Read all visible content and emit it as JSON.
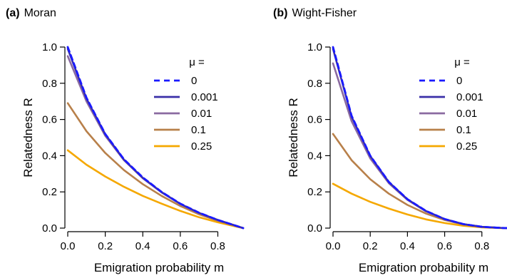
{
  "chart_data": [
    {
      "type": "line",
      "panel_label": "(a)",
      "title": "Moran",
      "xlabel": "Emigration probability m",
      "ylabel": "Relatedness R",
      "xlim": [
        0,
        0.935
      ],
      "ylim": [
        0,
        1.0
      ],
      "xticks": [
        "0.0",
        "0.2",
        "0.4",
        "0.6",
        "0.8"
      ],
      "yticks": [
        "0.0",
        "0.2",
        "0.4",
        "0.6",
        "0.8",
        "1.0"
      ],
      "legend_title": "μ =",
      "legend_position": "top-right",
      "grid": false,
      "series": [
        {
          "name": "0",
          "color": "#1a1aff",
          "dashed": true,
          "x": [
            0,
            0.1,
            0.2,
            0.3,
            0.4,
            0.5,
            0.6,
            0.7,
            0.8,
            0.9,
            0.935
          ],
          "y": [
            1.0,
            0.72,
            0.52,
            0.38,
            0.28,
            0.2,
            0.135,
            0.085,
            0.045,
            0.012,
            0.0
          ]
        },
        {
          "name": "0.001",
          "color": "#3a2fa8",
          "dashed": false,
          "x": [
            0,
            0.1,
            0.2,
            0.3,
            0.4,
            0.5,
            0.6,
            0.7,
            0.8,
            0.9,
            0.935
          ],
          "y": [
            0.99,
            0.715,
            0.518,
            0.378,
            0.278,
            0.199,
            0.134,
            0.084,
            0.045,
            0.012,
            0.0
          ]
        },
        {
          "name": "0.01",
          "color": "#8a6aa0",
          "dashed": false,
          "x": [
            0,
            0.1,
            0.2,
            0.3,
            0.4,
            0.5,
            0.6,
            0.7,
            0.8,
            0.9,
            0.935
          ],
          "y": [
            0.95,
            0.7,
            0.51,
            0.375,
            0.275,
            0.197,
            0.133,
            0.083,
            0.045,
            0.012,
            0.0
          ]
        },
        {
          "name": "0.1",
          "color": "#b8804a",
          "dashed": false,
          "x": [
            0,
            0.1,
            0.2,
            0.3,
            0.4,
            0.5,
            0.6,
            0.7,
            0.8,
            0.9,
            0.935
          ],
          "y": [
            0.69,
            0.535,
            0.415,
            0.32,
            0.243,
            0.178,
            0.122,
            0.076,
            0.04,
            0.011,
            0.0
          ]
        },
        {
          "name": "0.25",
          "color": "#f5a800",
          "dashed": false,
          "x": [
            0,
            0.1,
            0.2,
            0.3,
            0.4,
            0.5,
            0.6,
            0.7,
            0.8,
            0.9,
            0.935
          ],
          "y": [
            0.43,
            0.35,
            0.285,
            0.228,
            0.178,
            0.135,
            0.095,
            0.06,
            0.032,
            0.008,
            0.0
          ]
        }
      ]
    },
    {
      "type": "line",
      "panel_label": "(b)",
      "title": "Wight-Fisher",
      "xlabel": "Emigration probability m",
      "ylabel": "Relatedness R",
      "xlim": [
        0,
        0.935
      ],
      "ylim": [
        0,
        1.0
      ],
      "xticks": [
        "0.0",
        "0.2",
        "0.4",
        "0.6",
        "0.8"
      ],
      "yticks": [
        "0.0",
        "0.2",
        "0.4",
        "0.6",
        "0.8",
        "1.0"
      ],
      "legend_title": "μ =",
      "legend_position": "top-right",
      "grid": false,
      "series": [
        {
          "name": "0",
          "color": "#1a1aff",
          "dashed": true,
          "x": [
            0,
            0.1,
            0.2,
            0.3,
            0.4,
            0.5,
            0.6,
            0.7,
            0.8,
            0.9,
            0.935
          ],
          "y": [
            1.0,
            0.62,
            0.4,
            0.255,
            0.16,
            0.095,
            0.05,
            0.022,
            0.007,
            0.001,
            0.0
          ]
        },
        {
          "name": "0.001",
          "color": "#3a2fa8",
          "dashed": false,
          "x": [
            0,
            0.1,
            0.2,
            0.3,
            0.4,
            0.5,
            0.6,
            0.7,
            0.8,
            0.9,
            0.935
          ],
          "y": [
            0.99,
            0.615,
            0.398,
            0.254,
            0.159,
            0.094,
            0.05,
            0.022,
            0.007,
            0.001,
            0.0
          ]
        },
        {
          "name": "0.01",
          "color": "#8a6aa0",
          "dashed": false,
          "x": [
            0,
            0.1,
            0.2,
            0.3,
            0.4,
            0.5,
            0.6,
            0.7,
            0.8,
            0.9,
            0.935
          ],
          "y": [
            0.91,
            0.59,
            0.385,
            0.248,
            0.156,
            0.092,
            0.049,
            0.022,
            0.007,
            0.001,
            0.0
          ]
        },
        {
          "name": "0.1",
          "color": "#b8804a",
          "dashed": false,
          "x": [
            0,
            0.1,
            0.2,
            0.3,
            0.4,
            0.5,
            0.6,
            0.7,
            0.8,
            0.9,
            0.935
          ],
          "y": [
            0.52,
            0.375,
            0.27,
            0.19,
            0.128,
            0.08,
            0.045,
            0.02,
            0.006,
            0.001,
            0.0
          ]
        },
        {
          "name": "0.25",
          "color": "#f5a800",
          "dashed": false,
          "x": [
            0,
            0.1,
            0.2,
            0.3,
            0.4,
            0.5,
            0.6,
            0.7,
            0.8,
            0.9,
            0.935
          ],
          "y": [
            0.245,
            0.19,
            0.145,
            0.108,
            0.075,
            0.048,
            0.028,
            0.013,
            0.004,
            0.0,
            0.0
          ]
        }
      ]
    }
  ]
}
